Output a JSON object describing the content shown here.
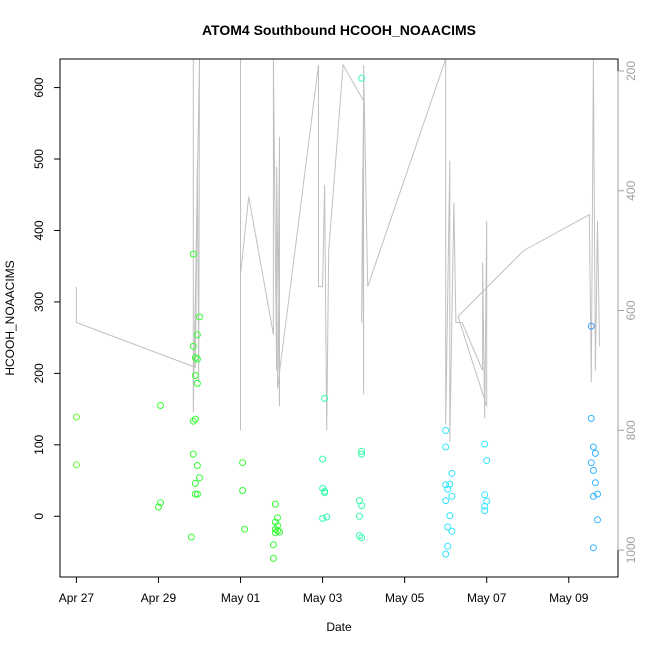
{
  "chart_data": {
    "type": "scatter",
    "title": "ATOM4 Southbound HCOOH_NOAACIMS",
    "xlabel": "Date",
    "ylabel": "HCOOH_NOAACIMS",
    "x_tick_labels": [
      "Apr 27",
      "Apr 29",
      "May 01",
      "May 03",
      "May 05",
      "May 07",
      "May 09"
    ],
    "x_tick_values": [
      27,
      29,
      31,
      33,
      35,
      37,
      39
    ],
    "xlim": [
      26.6,
      40.2
    ],
    "ylim": [
      -85,
      640
    ],
    "y_ticks": [
      0,
      100,
      200,
      300,
      400,
      500,
      600
    ],
    "y2_ticks": [
      200,
      400,
      600,
      800,
      1000
    ],
    "y2lim_top_to_bottom": [
      180,
      1045
    ],
    "grid": false,
    "legend": "none",
    "series": [
      {
        "color": "#66ff33",
        "values": [
          [
            27.0,
            139
          ],
          [
            27.0,
            72
          ]
        ]
      },
      {
        "color": "#33ff33",
        "values": [
          [
            29.05,
            155
          ],
          [
            29.0,
            13
          ],
          [
            29.05,
            19
          ],
          [
            29.85,
            367
          ],
          [
            29.85,
            238
          ],
          [
            29.9,
            222
          ],
          [
            29.95,
            220
          ],
          [
            29.95,
            254
          ],
          [
            30.0,
            279
          ],
          [
            29.9,
            197
          ],
          [
            29.95,
            186
          ],
          [
            29.85,
            133
          ],
          [
            29.9,
            136
          ],
          [
            29.85,
            87
          ],
          [
            29.95,
            71
          ],
          [
            30.0,
            54
          ],
          [
            29.9,
            46
          ],
          [
            29.9,
            31
          ],
          [
            29.95,
            31
          ],
          [
            29.8,
            -29
          ],
          [
            31.05,
            75
          ],
          [
            31.05,
            36
          ],
          [
            31.1,
            -18
          ],
          [
            31.85,
            17
          ],
          [
            31.9,
            -2
          ],
          [
            31.85,
            -8
          ],
          [
            31.9,
            -13
          ],
          [
            31.85,
            -18
          ],
          [
            31.9,
            -20
          ],
          [
            31.85,
            -23
          ],
          [
            31.95,
            -22
          ],
          [
            31.8,
            -40
          ],
          [
            31.8,
            -59
          ]
        ]
      },
      {
        "color": "#33ffaa",
        "values": [
          [
            33.05,
            165
          ],
          [
            33.0,
            80
          ],
          [
            33.0,
            39
          ],
          [
            33.05,
            33
          ],
          [
            33.05,
            35
          ],
          [
            33.1,
            -1
          ],
          [
            33.0,
            -3
          ],
          [
            33.95,
            613
          ],
          [
            33.95,
            91
          ],
          [
            33.95,
            87
          ],
          [
            33.9,
            22
          ],
          [
            33.95,
            15
          ],
          [
            33.9,
            0
          ],
          [
            33.9,
            -27
          ],
          [
            33.95,
            -30
          ]
        ]
      },
      {
        "color": "#33e6ff",
        "values": [
          [
            36.0,
            120
          ],
          [
            36.0,
            97
          ],
          [
            36.15,
            60
          ],
          [
            36.0,
            44
          ],
          [
            36.1,
            45
          ],
          [
            36.05,
            38
          ],
          [
            36.15,
            28
          ],
          [
            36.0,
            22
          ],
          [
            36.1,
            1
          ],
          [
            36.05,
            -15
          ],
          [
            36.15,
            -21
          ],
          [
            36.05,
            -42
          ],
          [
            36.0,
            -53
          ],
          [
            36.95,
            101
          ],
          [
            37.0,
            78
          ],
          [
            36.95,
            30
          ],
          [
            37.0,
            21
          ],
          [
            36.95,
            14
          ],
          [
            36.95,
            8
          ]
        ]
      },
      {
        "color": "#33b3ff",
        "values": [
          [
            39.55,
            137
          ],
          [
            39.6,
            97
          ],
          [
            39.65,
            88
          ],
          [
            39.55,
            75
          ],
          [
            39.6,
            64
          ],
          [
            39.65,
            47
          ],
          [
            39.7,
            31
          ],
          [
            39.6,
            28
          ],
          [
            39.7,
            -5
          ],
          [
            39.6,
            -44
          ]
        ]
      },
      {
        "color": "#3399ff",
        "values": [
          [
            39.55,
            266
          ]
        ]
      }
    ],
    "secondary_line": {
      "color": "#c0c0c0",
      "axis": "right",
      "values": [
        [
          27.0,
          560
        ],
        [
          27.0,
          620
        ],
        [
          29.9,
          695
        ],
        [
          29.95,
          350
        ],
        [
          29.98,
          720
        ],
        [
          30.0,
          120
        ],
        [
          29.85,
          770
        ],
        [
          29.85,
          150
        ],
        [
          30.0,
          110
        ],
        [
          31.0,
          150
        ],
        [
          31.0,
          800
        ],
        [
          31.0,
          540
        ],
        [
          31.2,
          410
        ],
        [
          31.8,
          640
        ],
        [
          31.8,
          180
        ],
        [
          31.88,
          700
        ],
        [
          31.88,
          360
        ],
        [
          31.95,
          760
        ],
        [
          31.95,
          310
        ],
        [
          31.9,
          730
        ],
        [
          32.9,
          190
        ],
        [
          32.9,
          560
        ],
        [
          33.0,
          560
        ],
        [
          33.05,
          390
        ],
        [
          33.1,
          800
        ],
        [
          33.15,
          500
        ],
        [
          33.5,
          190
        ],
        [
          34.0,
          250
        ],
        [
          33.95,
          620
        ],
        [
          33.98,
          360
        ],
        [
          34.0,
          740
        ],
        [
          34.0,
          190
        ],
        [
          34.1,
          560
        ],
        [
          36.0,
          110
        ],
        [
          36.0,
          790
        ],
        [
          36.1,
          350
        ],
        [
          36.1,
          820
        ],
        [
          36.2,
          420
        ],
        [
          36.25,
          620
        ],
        [
          36.4,
          620
        ],
        [
          36.9,
          700
        ],
        [
          36.9,
          520
        ],
        [
          36.95,
          780
        ],
        [
          37.0,
          450
        ],
        [
          37.0,
          760
        ],
        [
          36.3,
          610
        ],
        [
          37.9,
          500
        ],
        [
          39.5,
          440
        ],
        [
          39.55,
          720
        ],
        [
          39.6,
          140
        ],
        [
          39.65,
          700
        ],
        [
          39.7,
          450
        ],
        [
          39.75,
          660
        ]
      ]
    }
  }
}
